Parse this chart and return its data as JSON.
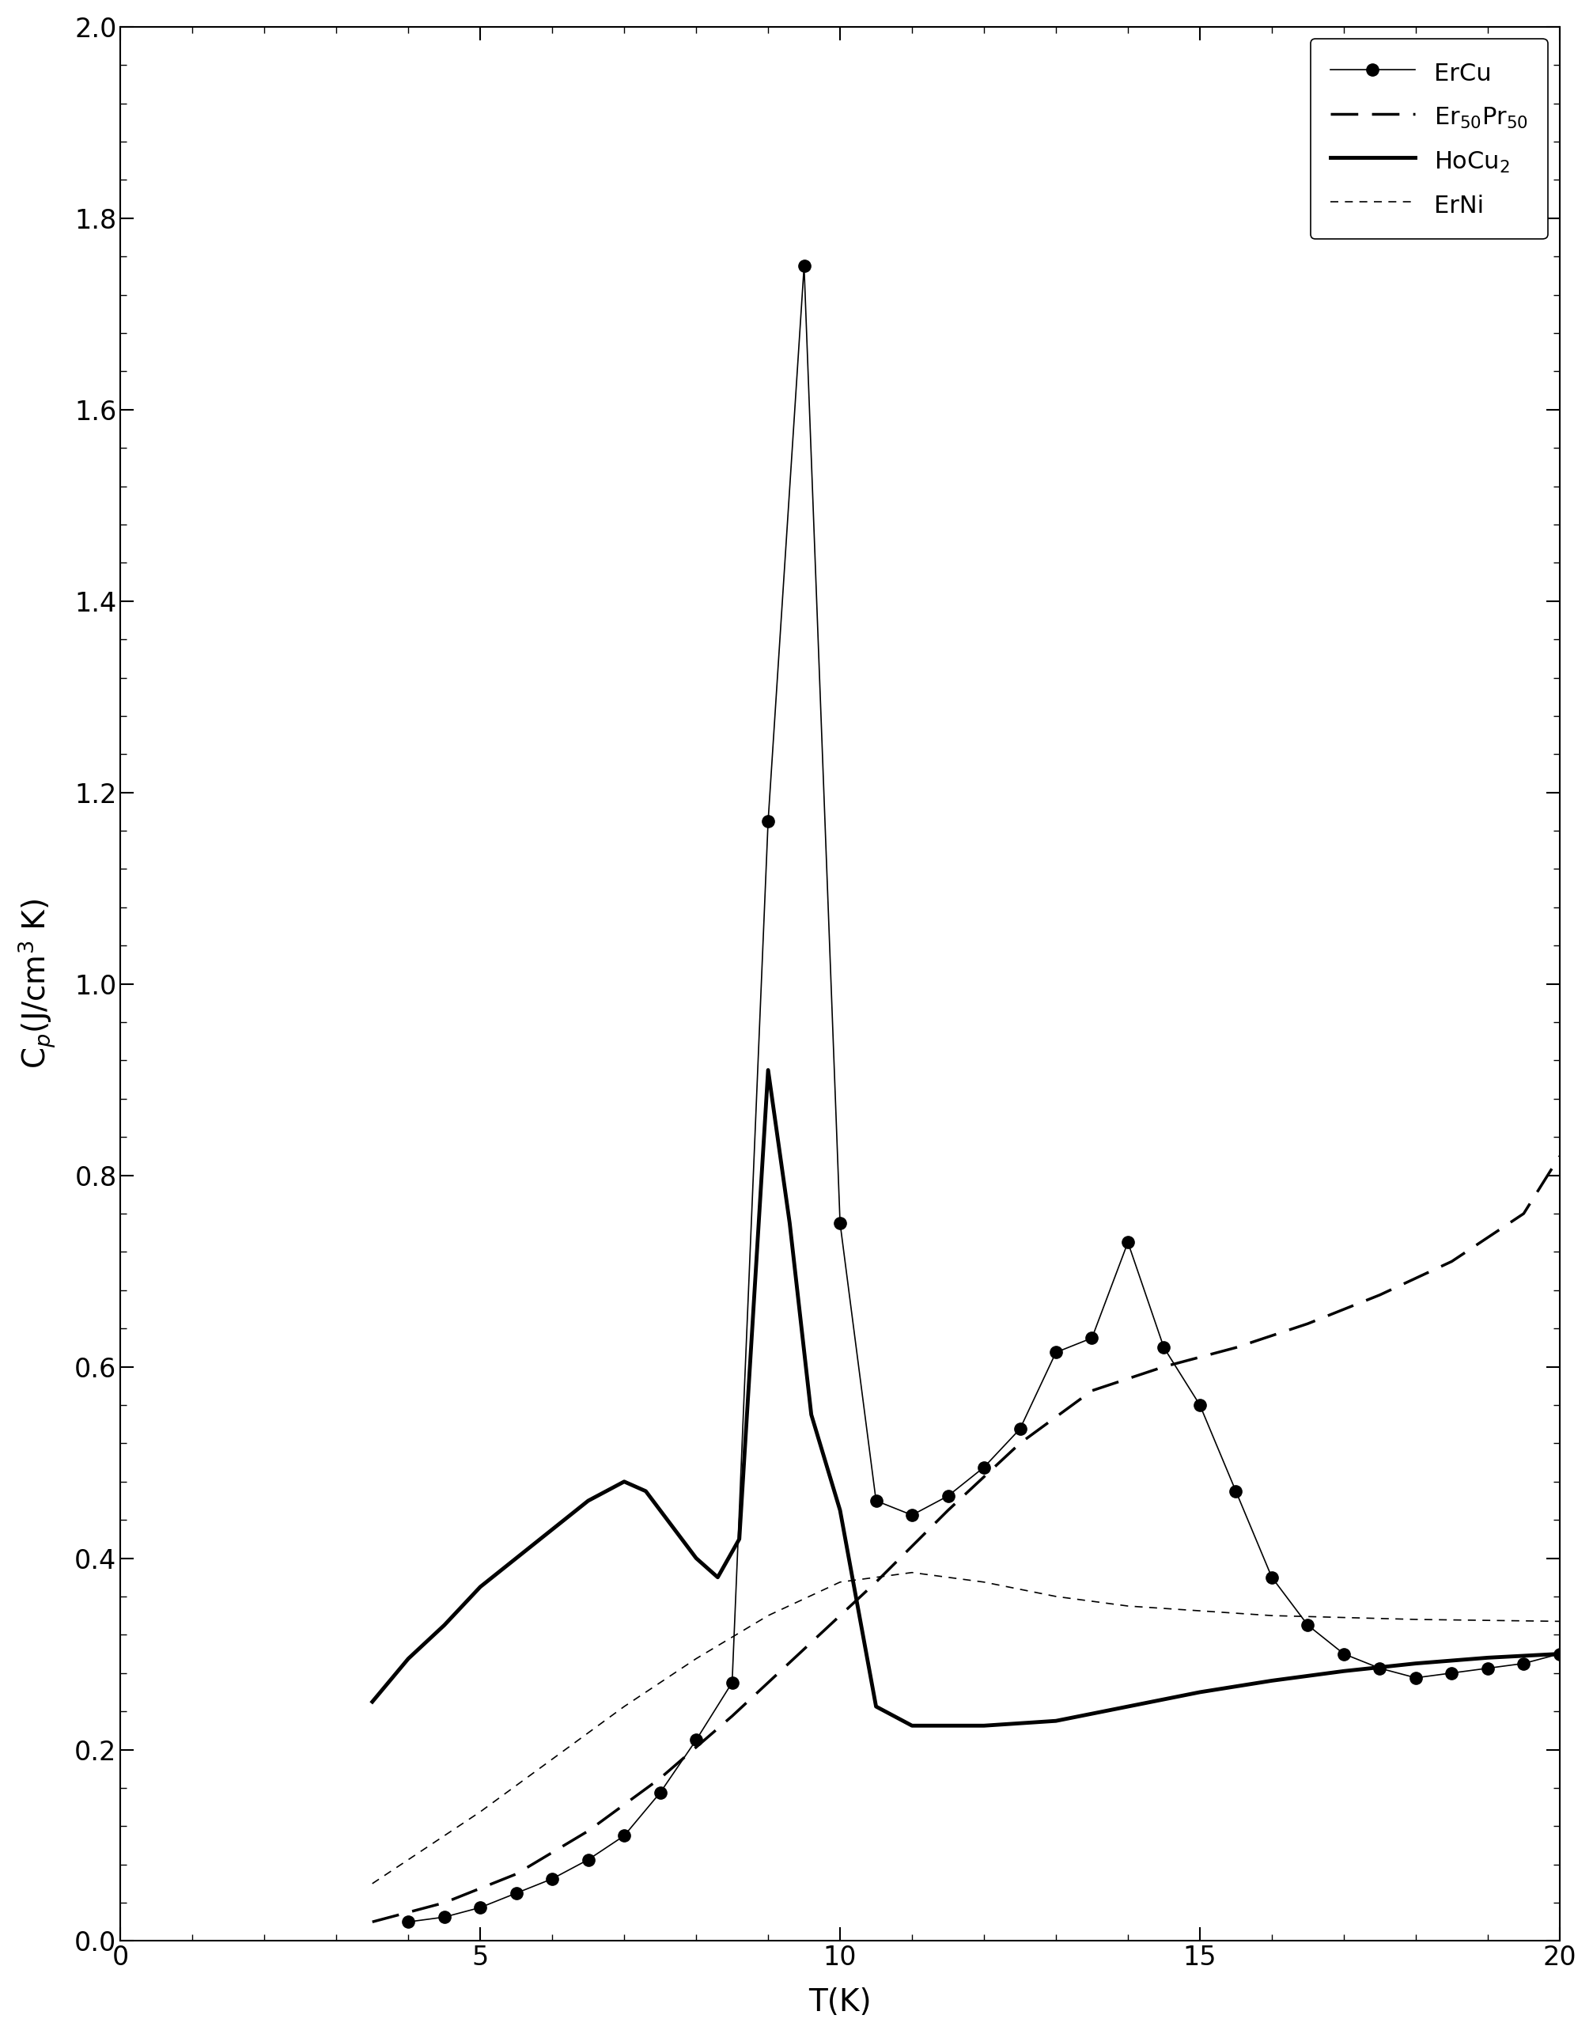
{
  "title": "",
  "xlabel": "T(K)",
  "xlim": [
    0,
    20
  ],
  "ylim": [
    0,
    2.0
  ],
  "xticks": [
    0,
    5,
    10,
    15,
    20
  ],
  "yticks": [
    0.0,
    0.2,
    0.4,
    0.6,
    0.8,
    1.0,
    1.2,
    1.4,
    1.6,
    1.8,
    2.0
  ],
  "ErCu_T": [
    4.0,
    4.5,
    5.0,
    5.5,
    6.0,
    6.5,
    7.0,
    7.5,
    8.0,
    8.5,
    9.0,
    9.5,
    10.0,
    10.5,
    11.0,
    11.5,
    12.0,
    12.5,
    13.0,
    13.5,
    14.0,
    14.5,
    15.0,
    15.5,
    16.0,
    16.5,
    17.0,
    17.5,
    18.0,
    18.5,
    19.0,
    19.5,
    20.0
  ],
  "ErCu_Cp": [
    0.02,
    0.025,
    0.035,
    0.05,
    0.065,
    0.085,
    0.11,
    0.155,
    0.21,
    0.27,
    1.17,
    1.75,
    0.75,
    0.46,
    0.445,
    0.465,
    0.495,
    0.535,
    0.615,
    0.63,
    0.73,
    0.62,
    0.56,
    0.47,
    0.38,
    0.33,
    0.3,
    0.285,
    0.275,
    0.28,
    0.285,
    0.29,
    0.3
  ],
  "Er50Pr50_T": [
    3.5,
    4.5,
    5.5,
    6.5,
    7.5,
    8.5,
    9.5,
    10.5,
    11.5,
    12.5,
    13.5,
    14.5,
    15.5,
    16.5,
    17.5,
    18.5,
    19.5,
    20.0
  ],
  "Er50Pr50_Cp": [
    0.02,
    0.04,
    0.07,
    0.115,
    0.17,
    0.235,
    0.305,
    0.375,
    0.45,
    0.52,
    0.575,
    0.6,
    0.62,
    0.645,
    0.675,
    0.71,
    0.76,
    0.82
  ],
  "HoCu2_T": [
    3.5,
    4.0,
    4.5,
    5.0,
    5.5,
    6.0,
    6.5,
    7.0,
    7.3,
    7.6,
    8.0,
    8.3,
    8.6,
    9.0,
    9.3,
    9.6,
    10.0,
    10.5,
    11.0,
    11.5,
    12.0,
    13.0,
    14.0,
    15.0,
    16.0,
    17.0,
    18.0,
    19.0,
    20.0
  ],
  "HoCu2_Cp": [
    0.25,
    0.295,
    0.33,
    0.37,
    0.4,
    0.43,
    0.46,
    0.48,
    0.47,
    0.44,
    0.4,
    0.38,
    0.42,
    0.91,
    0.75,
    0.55,
    0.45,
    0.245,
    0.225,
    0.225,
    0.225,
    0.23,
    0.245,
    0.26,
    0.272,
    0.282,
    0.29,
    0.296,
    0.3
  ],
  "ErNi_T": [
    3.5,
    4.0,
    5.0,
    6.0,
    7.0,
    8.0,
    9.0,
    10.0,
    11.0,
    12.0,
    13.0,
    14.0,
    15.0,
    16.0,
    17.0,
    18.0,
    19.0,
    20.0
  ],
  "ErNi_Cp": [
    0.06,
    0.085,
    0.135,
    0.19,
    0.245,
    0.295,
    0.34,
    0.375,
    0.385,
    0.375,
    0.36,
    0.35,
    0.345,
    0.34,
    0.338,
    0.336,
    0.335,
    0.334
  ],
  "background_color": "#ffffff",
  "line_color": "#000000"
}
